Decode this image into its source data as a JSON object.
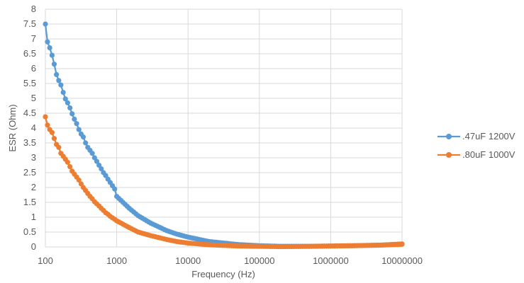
{
  "chart_data": {
    "type": "scatter",
    "title": "",
    "xlabel": "Frequency (Hz)",
    "ylabel": "ESR (Ohm)",
    "x_scale": "log",
    "xlim": [
      100,
      10000000
    ],
    "ylim": [
      0,
      8
    ],
    "x_ticks": [
      "100",
      "1000",
      "10000",
      "100000",
      "1000000",
      "10000000"
    ],
    "y_ticks": [
      "0",
      "0.5",
      "1",
      "1.5",
      "2",
      "2.5",
      "3",
      "3.5",
      "4",
      "4.5",
      "5",
      "5.5",
      "6",
      "6.5",
      "7",
      "7.5",
      "8"
    ],
    "grid": true,
    "legend_position": "right",
    "series": [
      {
        "name": ".47uF 1200V",
        "color": "#5B9BD5",
        "x": [
          100,
          107,
          115,
          124,
          133,
          143,
          154,
          165,
          178,
          191,
          205,
          221,
          237,
          255,
          274,
          295,
          317,
          340,
          366,
          393,
          423,
          454,
          489,
          525,
          565,
          607,
          652,
          701,
          754,
          810,
          871,
          936,
          1000,
          1500,
          2000,
          3000,
          5000,
          7000,
          10000,
          20000,
          50000,
          100000,
          200000,
          500000,
          1000000,
          2000000,
          5000000,
          10000000
        ],
        "y": [
          7.5,
          6.9,
          6.7,
          6.45,
          6.15,
          5.8,
          5.6,
          5.45,
          5.2,
          4.98,
          4.85,
          4.68,
          4.48,
          4.3,
          4.15,
          3.95,
          3.8,
          3.7,
          3.5,
          3.35,
          3.25,
          3.15,
          3.0,
          2.88,
          2.75,
          2.63,
          2.5,
          2.4,
          2.28,
          2.17,
          2.06,
          1.95,
          1.7,
          1.3,
          1.05,
          0.8,
          0.55,
          0.43,
          0.33,
          0.18,
          0.08,
          0.04,
          0.02,
          0.02,
          0.03,
          0.04,
          0.06,
          0.1
        ]
      },
      {
        "name": ".80uF 1000V",
        "color": "#ED7D31",
        "x": [
          100,
          107,
          115,
          124,
          133,
          143,
          154,
          165,
          178,
          191,
          205,
          221,
          237,
          255,
          274,
          295,
          317,
          340,
          366,
          393,
          423,
          454,
          489,
          525,
          565,
          607,
          652,
          701,
          754,
          810,
          871,
          936,
          1000,
          1500,
          2000,
          3000,
          5000,
          7000,
          10000,
          20000,
          50000,
          100000,
          200000,
          500000,
          1000000,
          2000000,
          5000000,
          10000000
        ],
        "y": [
          4.38,
          4.1,
          3.95,
          3.85,
          3.65,
          3.45,
          3.35,
          3.15,
          3.05,
          2.95,
          2.85,
          2.7,
          2.55,
          2.45,
          2.35,
          2.25,
          2.12,
          2.0,
          1.9,
          1.8,
          1.7,
          1.62,
          1.52,
          1.45,
          1.38,
          1.3,
          1.23,
          1.15,
          1.1,
          1.03,
          0.98,
          0.93,
          0.88,
          0.65,
          0.5,
          0.38,
          0.25,
          0.18,
          0.13,
          0.07,
          0.03,
          0.02,
          0.01,
          0.02,
          0.03,
          0.04,
          0.06,
          0.09
        ]
      }
    ]
  }
}
